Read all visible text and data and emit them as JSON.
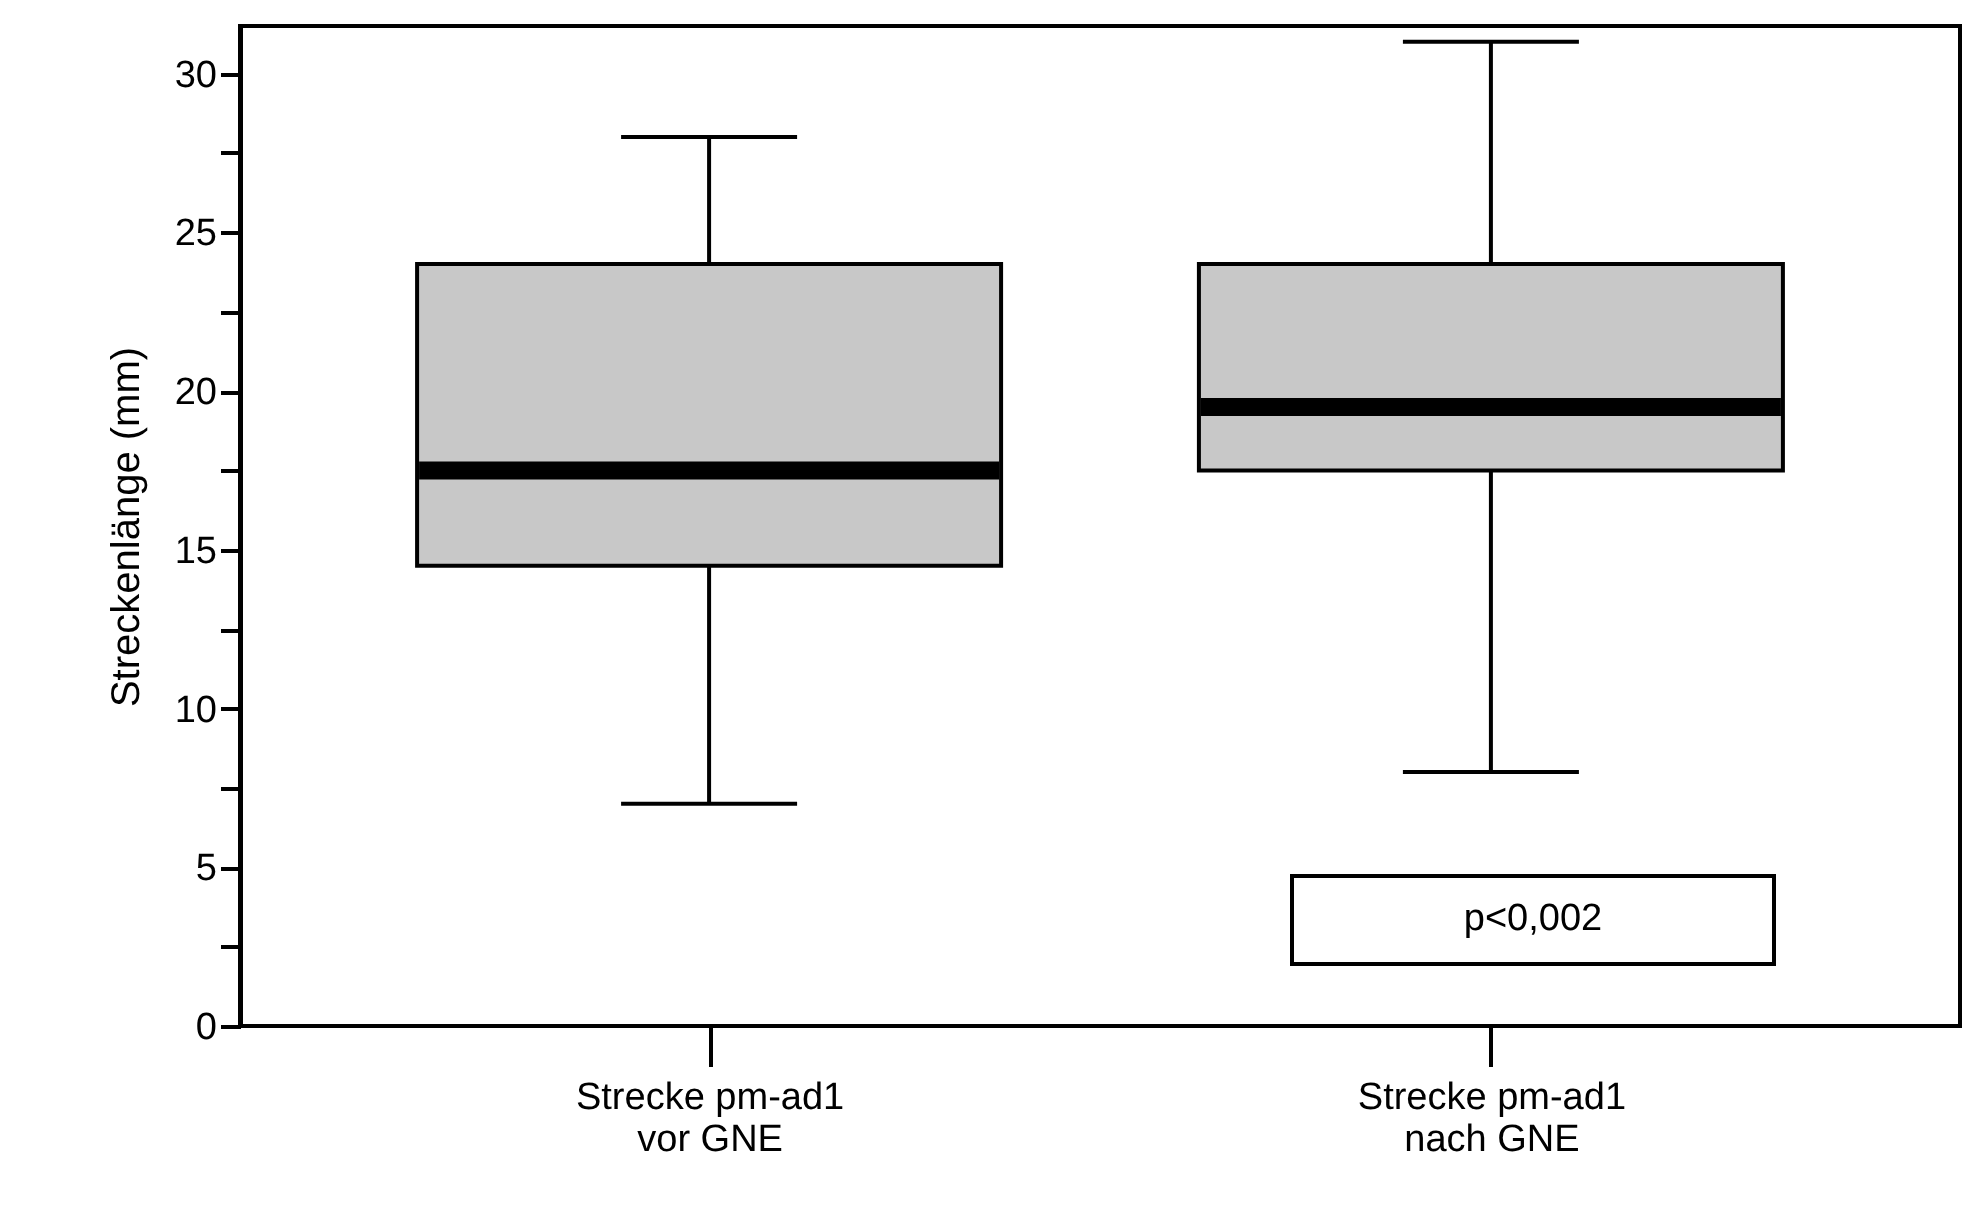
{
  "chart_data": {
    "type": "box",
    "ylabel": "Streckenlänge (mm)",
    "categories": [
      "Strecke pm-ad1\nvor GNE",
      "Strecke pm-ad1\nnach GNE"
    ],
    "boxes": [
      {
        "low": 7,
        "q1": 14.5,
        "median": 17.5,
        "q3": 24,
        "high": 28
      },
      {
        "low": 8,
        "q1": 17.5,
        "median": 19.5,
        "q3": 24,
        "high": 31
      }
    ],
    "color": "#c8c8c8",
    "ylim": [
      0,
      31.5
    ],
    "yticks": [
      0,
      {
        "value": 2.5,
        "label": null
      },
      5,
      {
        "value": 7.5,
        "label": null
      },
      10,
      {
        "value": 12.5,
        "label": null
      },
      15,
      {
        "value": 17.5,
        "label": null
      },
      20,
      {
        "value": 22.5,
        "label": null
      },
      25,
      {
        "value": 27.5,
        "label": null
      },
      30
    ],
    "grid": false,
    "annotations": [
      "p<0,002"
    ]
  }
}
